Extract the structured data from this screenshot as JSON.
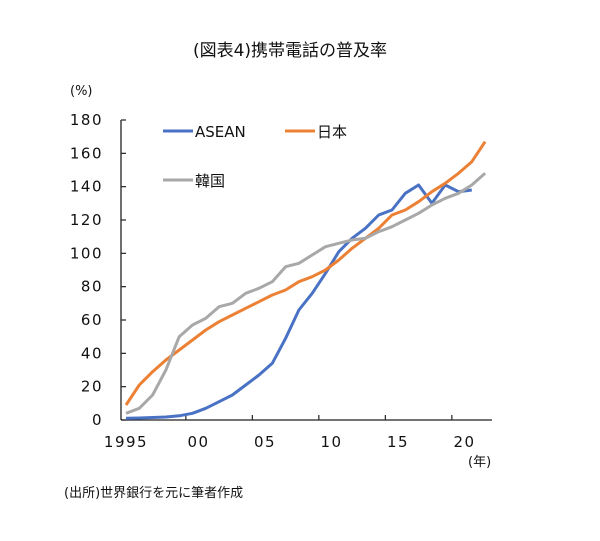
{
  "chart_data": {
    "type": "line",
    "title": "(図表4)携帯電話の普及率",
    "ylabel": "(%)",
    "xlabel": "(年)",
    "ylim": [
      0,
      180
    ],
    "yticks": [
      0,
      20,
      40,
      60,
      80,
      100,
      120,
      140,
      160,
      180
    ],
    "xlim": [
      1995,
      2022
    ],
    "xtick_labels": [
      {
        "year": 1995,
        "label": "1995"
      },
      {
        "year": 2000,
        "label": "00"
      },
      {
        "year": 2005,
        "label": "05"
      },
      {
        "year": 2010,
        "label": "10"
      },
      {
        "year": 2015,
        "label": "15"
      },
      {
        "year": 2020,
        "label": "20"
      }
    ],
    "legend_position": "top-left",
    "x": [
      1995,
      1996,
      1997,
      1998,
      1999,
      2000,
      2001,
      2002,
      2003,
      2004,
      2005,
      2006,
      2007,
      2008,
      2009,
      2010,
      2011,
      2012,
      2013,
      2014,
      2015,
      2016,
      2017,
      2018,
      2019,
      2020,
      2021,
      2022
    ],
    "series": [
      {
        "name": "ASEAN",
        "color": "#4a72c4",
        "values": [
          1,
          1.2,
          1.5,
          1.8,
          2.5,
          4,
          7,
          11,
          15,
          21,
          27,
          34,
          49,
          66,
          76,
          88,
          101,
          109,
          115,
          123,
          126,
          136,
          141,
          130,
          141,
          137,
          138,
          null
        ]
      },
      {
        "name": "日本",
        "color": "#ec8135",
        "values": [
          9,
          21,
          29,
          36,
          42,
          48,
          54,
          59,
          63,
          67,
          71,
          75,
          78,
          83,
          86,
          90,
          96,
          103,
          109,
          115,
          123,
          126,
          131,
          137,
          142,
          148,
          155,
          167
        ]
      },
      {
        "name": "韓国",
        "color": "#a8a8a8",
        "values": [
          4,
          7,
          15,
          30,
          50,
          57,
          61,
          68,
          70,
          76,
          79,
          83,
          92,
          94,
          99,
          104,
          106,
          108,
          109,
          113,
          116,
          120,
          124,
          129,
          133,
          136,
          141,
          148
        ]
      }
    ]
  },
  "footnote": "(出所)世界銀行を元に筆者作成"
}
